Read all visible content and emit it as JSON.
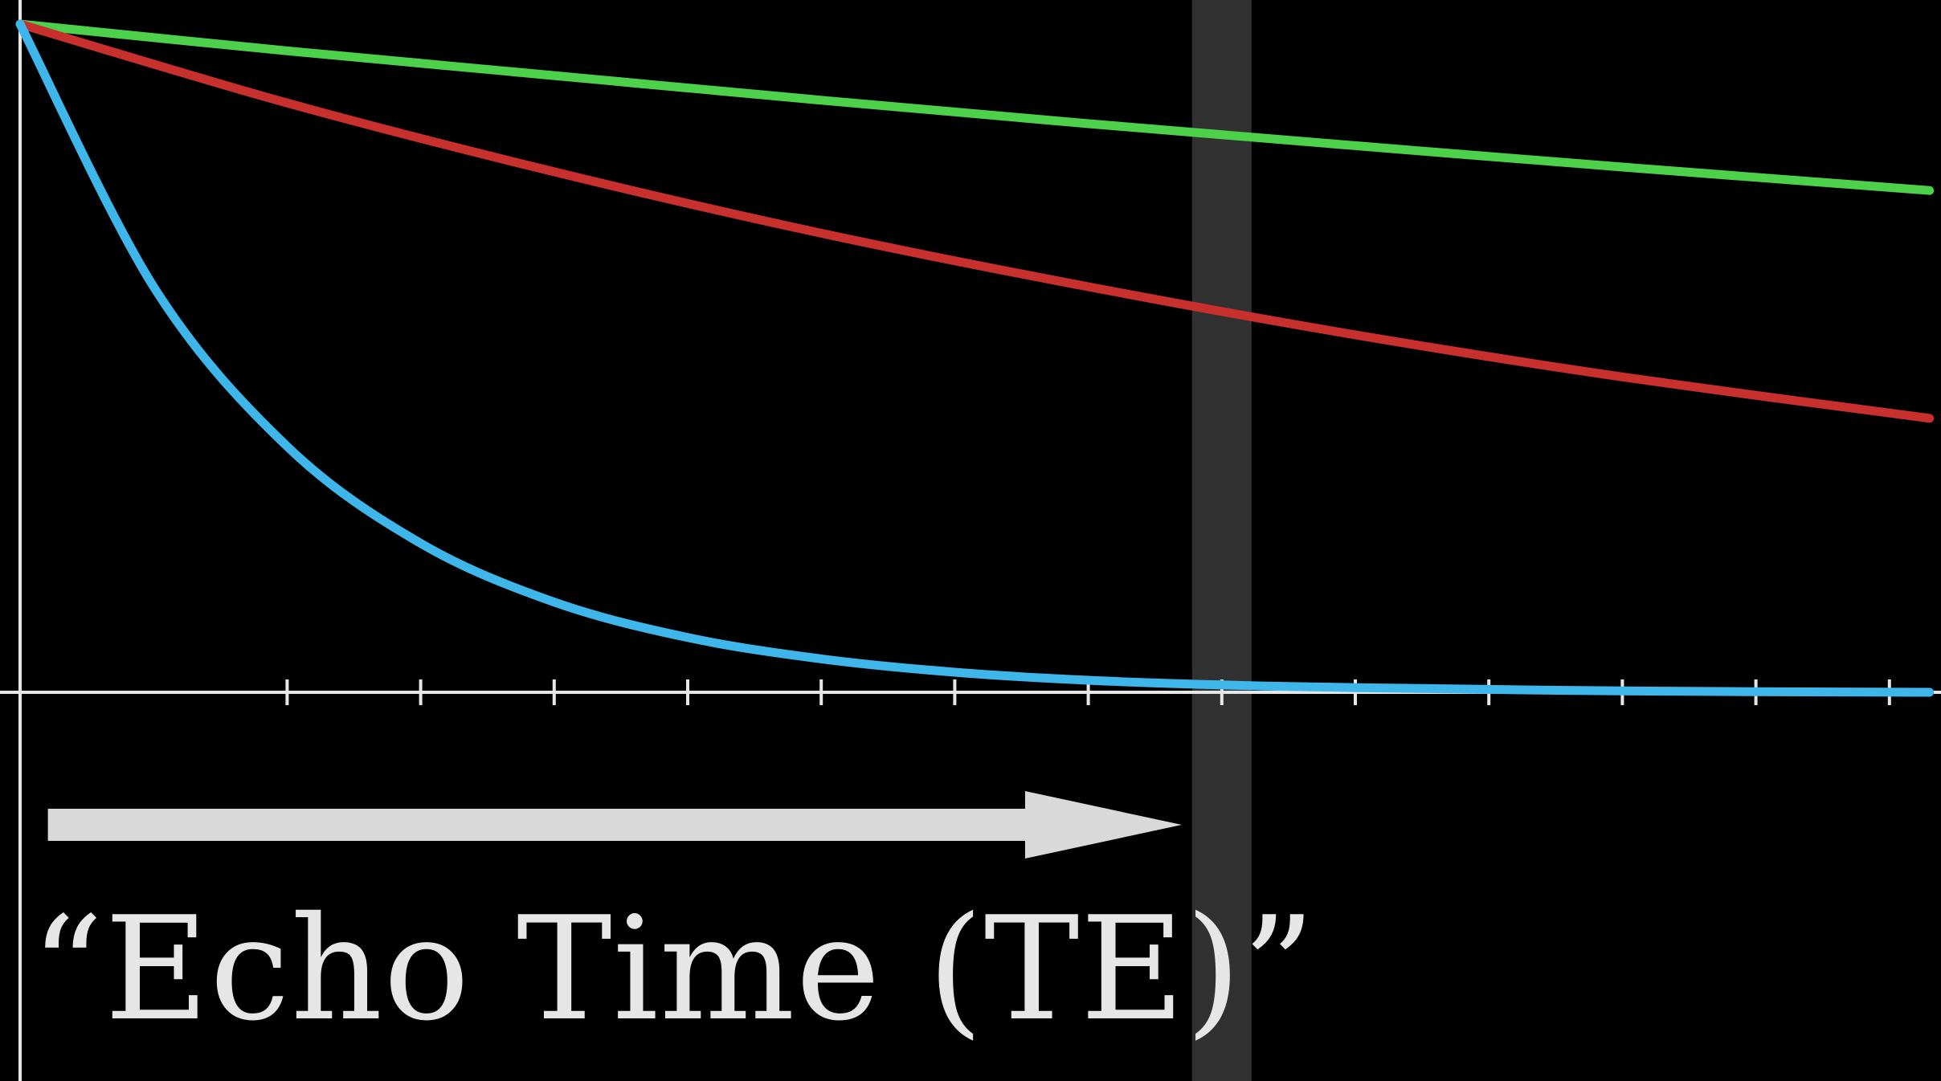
{
  "chart_data": {
    "type": "line",
    "title": "",
    "xlabel": "",
    "ylabel": "",
    "xlim": [
      0,
      14.3
    ],
    "ylim": [
      0,
      1
    ],
    "x_ticks": [
      2,
      3,
      4,
      5,
      6,
      7,
      8,
      9,
      10,
      11,
      12,
      13,
      14
    ],
    "grid": false,
    "series": [
      {
        "color": "#4dd14a",
        "x": [
          0,
          2,
          4,
          6,
          8,
          10,
          12,
          14.3
        ],
        "values": [
          1.0,
          0.96,
          0.923,
          0.886,
          0.851,
          0.818,
          0.786,
          0.751
        ]
      },
      {
        "color": "#c8302e",
        "x": [
          0,
          2,
          4,
          6,
          8,
          10,
          12,
          14.3
        ],
        "values": [
          1.0,
          0.882,
          0.779,
          0.687,
          0.607,
          0.535,
          0.472,
          0.41
        ]
      },
      {
        "color": "#3fb6ea",
        "x": [
          0,
          1,
          2,
          3,
          4,
          5,
          6,
          7,
          8,
          9,
          10,
          12,
          14.3
        ],
        "values": [
          1.0,
          0.607,
          0.368,
          0.223,
          0.135,
          0.082,
          0.05,
          0.03,
          0.018,
          0.011,
          0.007,
          0.002,
          0.0
        ]
      }
    ],
    "marker": {
      "x": 9.0,
      "color": "#3a3a3a",
      "opacity": 0.85
    },
    "arrow": {
      "x_start": 0.1,
      "x_end": 8.7,
      "color": "#d9d9d9"
    }
  },
  "caption": "“Echo Time (TE)”",
  "colors": {
    "background": "#000000",
    "axis": "#e6e6e6",
    "text": "#e6e6e6"
  }
}
